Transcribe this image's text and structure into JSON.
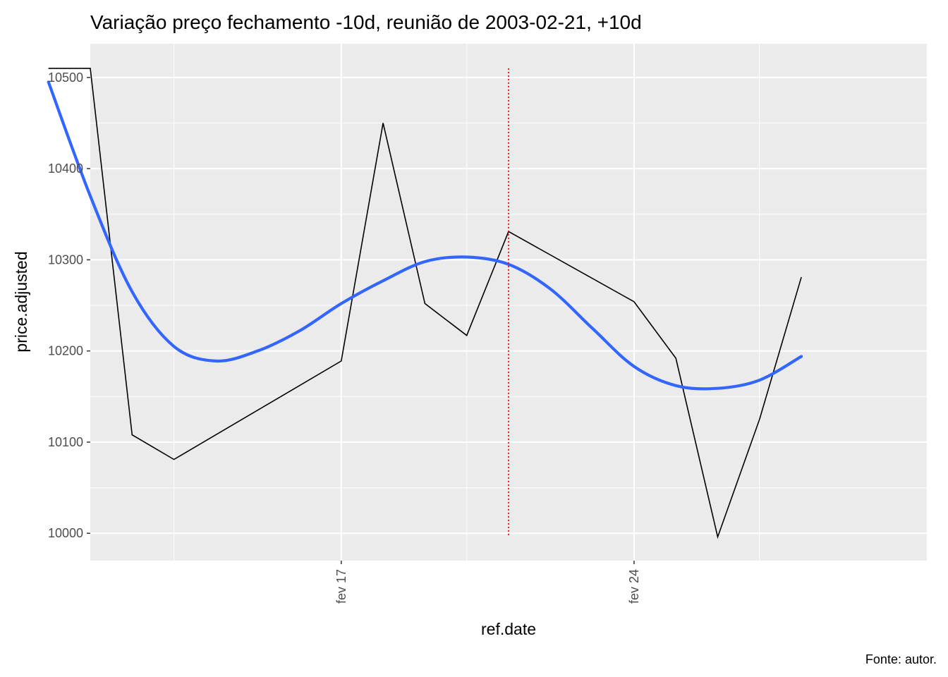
{
  "chart_data": {
    "type": "line",
    "title": "Variação preço fechamento -10d, reunião de 2003-02-21, +10d",
    "xlabel": "ref.date",
    "ylabel": "price.adjusted",
    "caption": "Fonte: autor.",
    "x_axis": {
      "type": "date",
      "range": [
        "2003-02-11",
        "2003-03-03"
      ],
      "ticks": [
        {
          "value": "2003-02-17",
          "label": "fev 17"
        },
        {
          "value": "2003-02-24",
          "label": "fev 24"
        }
      ],
      "minor_ticks": [
        "2003-02-13",
        "2003-02-20",
        "2003-02-27"
      ]
    },
    "y_axis": {
      "range": [
        9970,
        10537
      ],
      "ticks": [
        10000,
        10100,
        10200,
        10300,
        10400,
        10500
      ],
      "minor_ticks": [
        10050,
        10150,
        10250,
        10350,
        10450
      ]
    },
    "grid": true,
    "legend": "none",
    "series": [
      {
        "kind": "line",
        "color": "#000000",
        "points": [
          {
            "x": "2003-02-10",
            "y": 10510
          },
          {
            "x": "2003-02-11",
            "y": 10510
          },
          {
            "x": "2003-02-12",
            "y": 10108
          },
          {
            "x": "2003-02-13",
            "y": 10081
          },
          {
            "x": "2003-02-17",
            "y": 10189
          },
          {
            "x": "2003-02-18",
            "y": 10450
          },
          {
            "x": "2003-02-19",
            "y": 10252
          },
          {
            "x": "2003-02-20",
            "y": 10217
          },
          {
            "x": "2003-02-21",
            "y": 10331
          },
          {
            "x": "2003-02-24",
            "y": 10254
          },
          {
            "x": "2003-02-25",
            "y": 10192
          },
          {
            "x": "2003-02-26",
            "y": 9996
          },
          {
            "x": "2003-02-27",
            "y": 10125
          },
          {
            "x": "2003-02-28",
            "y": 10281
          }
        ]
      },
      {
        "kind": "smooth",
        "color": "#3366FF",
        "points": [
          {
            "x": "2003-02-10",
            "y": 10495
          },
          {
            "x": "2003-02-11",
            "y": 10370
          },
          {
            "x": "2003-02-12",
            "y": 10265
          },
          {
            "x": "2003-02-13",
            "y": 10205
          },
          {
            "x": "2003-02-14",
            "y": 10189
          },
          {
            "x": "2003-02-15",
            "y": 10200
          },
          {
            "x": "2003-02-16",
            "y": 10222
          },
          {
            "x": "2003-02-17",
            "y": 10252
          },
          {
            "x": "2003-02-18",
            "y": 10277
          },
          {
            "x": "2003-02-19",
            "y": 10298
          },
          {
            "x": "2003-02-20",
            "y": 10303
          },
          {
            "x": "2003-02-21",
            "y": 10295
          },
          {
            "x": "2003-02-22",
            "y": 10268
          },
          {
            "x": "2003-02-23",
            "y": 10225
          },
          {
            "x": "2003-02-24",
            "y": 10183
          },
          {
            "x": "2003-02-25",
            "y": 10162
          },
          {
            "x": "2003-02-26",
            "y": 10159
          },
          {
            "x": "2003-02-27",
            "y": 10168
          },
          {
            "x": "2003-02-28",
            "y": 10194
          }
        ]
      }
    ],
    "reference_line": {
      "x": "2003-02-21",
      "color": "#FF0000",
      "style": "dotted",
      "y_range": [
        9996,
        10510
      ]
    }
  }
}
